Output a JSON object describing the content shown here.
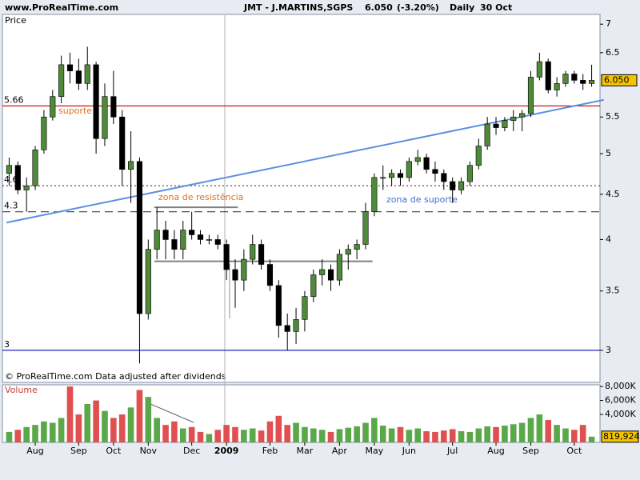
{
  "chart_data": {
    "type": "candlestick",
    "site": "www.ProRealTime.com",
    "title": "JMT - J.MARTINS,SGPS",
    "last_price": {
      "value": 6.05,
      "label": "6.050"
    },
    "change": "(-3.20%)",
    "period": "Daily",
    "date": "30 Oct",
    "price_label": "Price",
    "volume_label": "Volume",
    "footer": "© ProRealTime.com  Data adjusted after dividends",
    "log_y": true,
    "ylim": [
      2.76,
      7.15
    ],
    "yticks": [
      3,
      3.5,
      4,
      4.5,
      5,
      5.5,
      6.5,
      7
    ],
    "categories": [
      null,
      null,
      null,
      "Aug",
      null,
      null,
      null,
      null,
      "Sep",
      null,
      null,
      null,
      "Oct",
      null,
      null,
      null,
      "Nov",
      null,
      null,
      null,
      null,
      "Dec",
      null,
      null,
      null,
      "2009",
      null,
      null,
      null,
      null,
      "Feb",
      null,
      null,
      null,
      "Mar",
      null,
      null,
      null,
      "Apr",
      null,
      null,
      null,
      "May",
      null,
      null,
      null,
      "Jun",
      null,
      null,
      null,
      null,
      "Jul",
      null,
      null,
      null,
      null,
      "Aug",
      null,
      null,
      null,
      "Sep",
      null,
      null,
      null,
      null,
      "Oct",
      null,
      null
    ],
    "open": [
      4.75,
      4.85,
      4.55,
      4.6,
      5.05,
      5.5,
      5.8,
      6.3,
      6.2,
      6.0,
      6.3,
      5.2,
      5.8,
      5.5,
      4.8,
      4.9,
      3.3,
      3.9,
      4.1,
      4.0,
      3.9,
      4.1,
      4.05,
      4.0,
      4.0,
      3.95,
      3.7,
      3.6,
      3.8,
      3.95,
      3.75,
      3.55,
      3.2,
      3.15,
      3.25,
      3.45,
      3.65,
      3.7,
      3.6,
      3.85,
      3.9,
      3.95,
      4.3,
      4.7,
      4.7,
      4.75,
      4.7,
      4.9,
      4.95,
      4.8,
      4.75,
      4.65,
      4.55,
      4.65,
      4.85,
      5.1,
      5.4,
      5.35,
      5.45,
      5.5,
      5.55,
      6.1,
      6.35,
      5.9,
      6.0,
      6.15,
      6.05,
      6.0
    ],
    "high": [
      4.95,
      4.9,
      4.7,
      5.1,
      5.6,
      5.9,
      6.45,
      6.5,
      6.4,
      6.6,
      6.35,
      6.0,
      6.2,
      5.6,
      5.3,
      4.95,
      4.0,
      4.35,
      4.2,
      4.1,
      4.2,
      4.3,
      4.1,
      4.05,
      4.05,
      4.0,
      3.8,
      3.9,
      4.05,
      4.0,
      3.8,
      3.6,
      3.3,
      3.35,
      3.5,
      3.7,
      3.8,
      3.75,
      3.9,
      3.95,
      4.0,
      4.4,
      4.75,
      4.85,
      4.8,
      4.8,
      4.95,
      5.05,
      5.0,
      4.9,
      4.8,
      4.7,
      4.7,
      4.9,
      5.2,
      5.5,
      5.5,
      5.5,
      5.6,
      5.6,
      6.2,
      6.5,
      6.4,
      6.1,
      6.2,
      6.2,
      6.15,
      6.3
    ],
    "low": [
      4.6,
      4.5,
      4.3,
      4.55,
      5.0,
      5.45,
      5.7,
      6.0,
      5.9,
      5.9,
      5.0,
      5.1,
      5.4,
      4.6,
      4.4,
      2.9,
      3.25,
      3.8,
      3.8,
      3.8,
      3.8,
      4.0,
      3.95,
      3.95,
      3.9,
      3.6,
      3.35,
      3.5,
      3.75,
      3.7,
      3.5,
      3.1,
      3.0,
      3.05,
      3.15,
      3.4,
      3.55,
      3.5,
      3.55,
      3.7,
      3.8,
      3.9,
      4.25,
      4.55,
      4.6,
      4.6,
      4.65,
      4.85,
      4.75,
      4.65,
      4.55,
      4.4,
      4.5,
      4.6,
      4.8,
      5.05,
      5.25,
      5.3,
      5.3,
      5.3,
      5.5,
      6.05,
      5.85,
      5.8,
      5.95,
      6.0,
      5.9,
      5.95
    ],
    "close": [
      4.85,
      4.55,
      4.6,
      5.05,
      5.5,
      5.8,
      6.3,
      6.2,
      6.0,
      6.3,
      5.2,
      5.8,
      5.5,
      4.8,
      4.9,
      3.3,
      3.9,
      4.1,
      4.0,
      3.9,
      4.1,
      4.05,
      4.0,
      4.0,
      3.95,
      3.7,
      3.6,
      3.8,
      3.95,
      3.75,
      3.55,
      3.2,
      3.15,
      3.25,
      3.45,
      3.65,
      3.7,
      3.6,
      3.85,
      3.9,
      3.95,
      4.3,
      4.7,
      4.7,
      4.75,
      4.7,
      4.9,
      4.95,
      4.8,
      4.75,
      4.65,
      4.55,
      4.65,
      4.85,
      5.1,
      5.4,
      5.35,
      5.45,
      5.5,
      5.55,
      6.1,
      6.35,
      5.9,
      6.0,
      6.15,
      6.05,
      6.0,
      6.05
    ],
    "volume": [
      1500000,
      1800000,
      2200000,
      2500000,
      3000000,
      2800000,
      3500000,
      8000000,
      4000000,
      5500000,
      6000000,
      4500000,
      3500000,
      4000000,
      5000000,
      7500000,
      6500000,
      3500000,
      2500000,
      3000000,
      2000000,
      2200000,
      1500000,
      1200000,
      1800000,
      2500000,
      2200000,
      1800000,
      2000000,
      1700000,
      3000000,
      3800000,
      2500000,
      2800000,
      2200000,
      2000000,
      1800000,
      1500000,
      1900000,
      2100000,
      2300000,
      2800000,
      3500000,
      2400000,
      2000000,
      2200000,
      1800000,
      2000000,
      1600000,
      1500000,
      1700000,
      1900000,
      1600000,
      1500000,
      2000000,
      2300000,
      2200000,
      2400000,
      2600000,
      2800000,
      3500000,
      4000000,
      3200000,
      2500000,
      2000000,
      1800000,
      2500000,
      819924
    ],
    "volume_ylim": [
      0,
      8240000
    ],
    "volume_yticks": [
      {
        "value": 4000000,
        "label": "4,000K"
      },
      {
        "value": 6000000,
        "label": "6,000K"
      },
      {
        "value": 8000000,
        "label": "8,000K"
      }
    ],
    "last_volume": {
      "value": 819924,
      "label": "819,924"
    },
    "up_color": "#4f8a3a",
    "down_color": "#000000",
    "volume_up_color": "#5aa84a",
    "volume_down_color": "#e05050",
    "levels": [
      {
        "value": 5.66,
        "color": "#c00000",
        "dash": "none"
      },
      {
        "value": 4.6,
        "color": "#804040",
        "dash": "2,3"
      },
      {
        "value": 4.3,
        "color": "#404040",
        "dash": "10,6"
      },
      {
        "value": 3,
        "color": "#2020c0",
        "dash": "none"
      }
    ],
    "trendline": {
      "x": [
        -0.3,
        68.4
      ],
      "y": [
        4.18,
        5.75
      ],
      "color": "#5b8fe0"
    },
    "zone_lines": [
      {
        "x": [
          16.7,
          26.3
        ],
        "y": [
          4.35,
          4.35
        ],
        "color": "#808080"
      },
      {
        "x": [
          16.7,
          41.8
        ],
        "y": [
          3.78,
          3.78
        ],
        "color": "#808080"
      }
    ],
    "annotations": [
      {
        "text": "suporte",
        "color": "#e07020"
      },
      {
        "text": "zona de resistência",
        "color": "#e07020"
      },
      {
        "text": "zona de suporte",
        "color": "#4070d0"
      }
    ]
  }
}
